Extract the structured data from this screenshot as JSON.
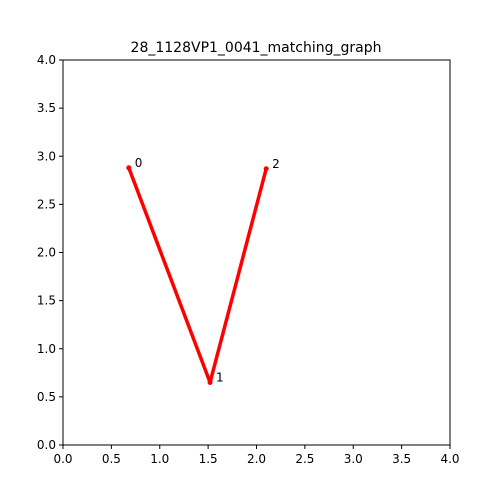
{
  "chart_data": {
    "type": "line",
    "title": "28_1128VP1_0041_matching_graph",
    "xlabel": "",
    "ylabel": "",
    "xlim": [
      0,
      4
    ],
    "ylim": [
      0,
      4
    ],
    "xticks": [
      "0.0",
      "0.5",
      "1.0",
      "1.5",
      "2.0",
      "2.5",
      "3.0",
      "3.5",
      "4.0"
    ],
    "yticks": [
      "0.0",
      "0.5",
      "1.0",
      "1.5",
      "2.0",
      "2.5",
      "3.0",
      "3.5",
      "4.0"
    ],
    "grid": false,
    "line_color": "#ff0000",
    "points": [
      {
        "label": "0",
        "x": 0.68,
        "y": 2.88
      },
      {
        "label": "1",
        "x": 1.52,
        "y": 0.65
      },
      {
        "label": "2",
        "x": 2.1,
        "y": 2.87
      }
    ],
    "edges": [
      [
        0,
        1
      ],
      [
        1,
        2
      ]
    ]
  }
}
